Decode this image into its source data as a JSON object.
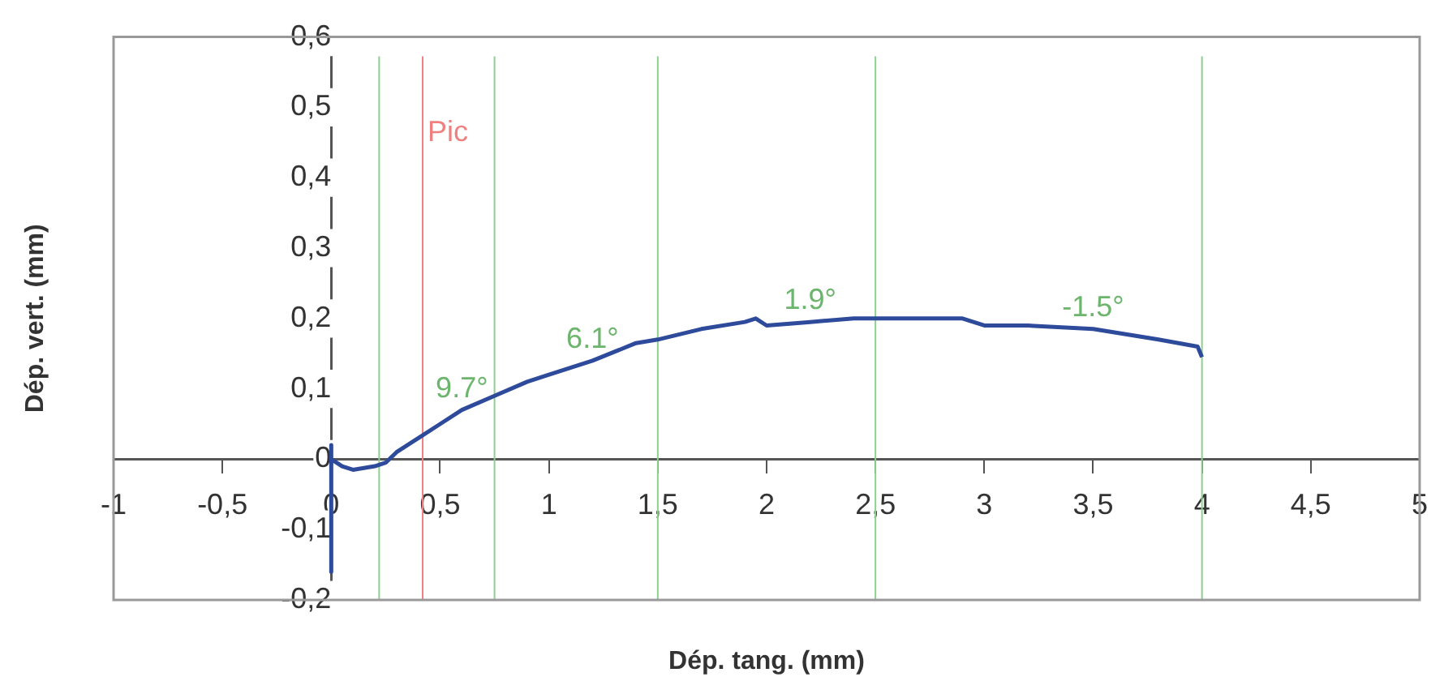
{
  "chart_data": {
    "type": "line",
    "xlabel": "Dép. tang. (mm)",
    "ylabel": "Dép. vert. (mm)",
    "xlim": [
      -1,
      5
    ],
    "xticks": [
      {
        "value": -1,
        "label": "-1"
      },
      {
        "value": -0.5,
        "label": "-0,5"
      },
      {
        "value": 0,
        "label": "0"
      },
      {
        "value": 0.5,
        "label": "0,5"
      },
      {
        "value": 1,
        "label": "1"
      },
      {
        "value": 1.5,
        "label": "1,5"
      },
      {
        "value": 2,
        "label": "2"
      },
      {
        "value": 2.5,
        "label": "2,5"
      },
      {
        "value": 3,
        "label": "3"
      },
      {
        "value": 3.5,
        "label": "3,5"
      },
      {
        "value": 4,
        "label": "4"
      },
      {
        "value": 4.5,
        "label": "4,5"
      },
      {
        "value": 5,
        "label": "5"
      }
    ],
    "ylim": [
      -0.2,
      0.6
    ],
    "yticks": [
      {
        "value": -0.2,
        "label": "-0,2"
      },
      {
        "value": -0.1,
        "label": "-0,1"
      },
      {
        "value": 0,
        "label": "0"
      },
      {
        "value": 0.1,
        "label": "0,1"
      },
      {
        "value": 0.2,
        "label": "0,2"
      },
      {
        "value": 0.3,
        "label": "0,3"
      },
      {
        "value": 0.4,
        "label": "0,4"
      },
      {
        "value": 0.5,
        "label": "0,5"
      },
      {
        "value": 0.6,
        "label": "0,6"
      }
    ],
    "grid": false,
    "legend": false,
    "marker": "none",
    "line_style": "solid",
    "series": [
      {
        "color": "#2e4a9a",
        "x": [
          0,
          0,
          0,
          0.05,
          0.1,
          0.2,
          0.25,
          0.3,
          0.4,
          0.5,
          0.6,
          0.75,
          0.9,
          1.0,
          1.2,
          1.4,
          1.5,
          1.7,
          1.9,
          1.95,
          2.0,
          2.2,
          2.4,
          2.6,
          2.9,
          3.0,
          3.2,
          3.5,
          3.8,
          3.98,
          4.0
        ],
        "values": [
          0.02,
          -0.16,
          0,
          -0.01,
          -0.015,
          -0.01,
          -0.005,
          0.01,
          0.03,
          0.05,
          0.07,
          0.09,
          0.11,
          0.12,
          0.14,
          0.165,
          0.17,
          0.185,
          0.195,
          0.2,
          0.19,
          0.195,
          0.2,
          0.2,
          0.2,
          0.19,
          0.19,
          0.185,
          0.17,
          0.16,
          0.145
        ]
      }
    ],
    "ref_lines": [
      {
        "axis": "x",
        "value": 0.22,
        "color": "#8fcf8f"
      },
      {
        "axis": "x",
        "value": 0.42,
        "label": "Pic",
        "color": "#f08080"
      },
      {
        "axis": "x",
        "value": 0.75,
        "color": "#8fcf8f"
      },
      {
        "axis": "x",
        "value": 1.5,
        "color": "#8fcf8f"
      },
      {
        "axis": "x",
        "value": 2.5,
        "color": "#8fcf8f"
      },
      {
        "axis": "x",
        "value": 4,
        "color": "#8fcf8f"
      }
    ],
    "annotations": [
      {
        "text": "9.7°",
        "x": 0.6,
        "y": 0.07
      },
      {
        "text": "6.1°",
        "x": 1.2,
        "y": 0.14
      },
      {
        "text": "1.9°",
        "x": 2.2,
        "y": 0.195
      },
      {
        "text": "-1.5°",
        "x": 3.5,
        "y": 0.185
      }
    ]
  }
}
